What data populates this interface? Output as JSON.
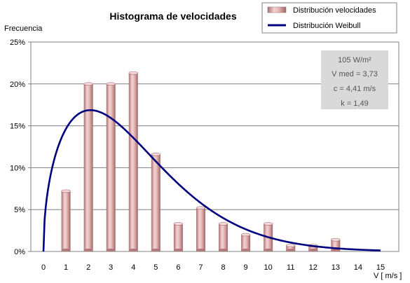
{
  "chart_data": {
    "type": "bar",
    "title": "Histograma de velocidades",
    "ylabel": "Frecuencia",
    "xlabel": "V [ m/s ]",
    "x_ticks": [
      "0",
      "1",
      "2",
      "3",
      "4",
      "5",
      "6",
      "7",
      "8",
      "9",
      "10",
      "11",
      "12",
      "13",
      "14",
      "15"
    ],
    "xlim": [
      0,
      15
    ],
    "y_ticks": [
      "0%",
      "5%",
      "10%",
      "15%",
      "20%",
      "25%"
    ],
    "ylim": [
      0,
      25
    ],
    "grid": true,
    "legend_position": "top-right",
    "series": [
      {
        "name": "Distribución velocidades",
        "type": "bar",
        "color": "#d9a3a3",
        "x": [
          1,
          2,
          3,
          4,
          5,
          6,
          7,
          8,
          9,
          10,
          11,
          12,
          13
        ],
        "values": [
          7.2,
          20.0,
          20.0,
          21.3,
          11.6,
          3.3,
          5.2,
          3.3,
          2.0,
          3.3,
          0.7,
          0.7,
          1.4
        ]
      },
      {
        "name": "Distribución Weibull",
        "type": "line",
        "color": "#000080",
        "weibull_c": 4.41,
        "weibull_k": 1.49
      }
    ],
    "annotations": [
      "105 W/m²",
      "V med = 3,73",
      "c = 4,41 m/s",
      "k = 1,49"
    ]
  }
}
